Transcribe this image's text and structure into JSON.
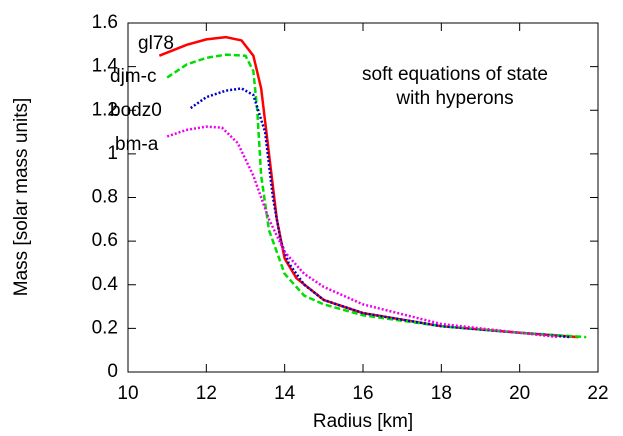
{
  "chart_data": {
    "type": "line",
    "xlabel": "Radius [km]",
    "ylabel": "Mass [solar mass units]",
    "annotation": [
      "soft equations of state",
      "with hyperons"
    ],
    "xlim": [
      10,
      22
    ],
    "xticks": [
      10,
      12,
      14,
      16,
      18,
      20,
      22
    ],
    "ylim": [
      0,
      1.6
    ],
    "yticks": [
      0,
      0.2,
      0.4,
      0.6,
      0.8,
      1,
      1.2,
      1.4,
      1.6
    ],
    "series": [
      {
        "name": "gl78",
        "color": "#ff0000",
        "dash": "solid",
        "x": [
          10.8,
          11.5,
          12,
          12.5,
          12.9,
          13.2,
          13.4,
          13.6,
          13.8,
          14,
          14.3,
          15,
          16,
          18,
          20,
          21.5
        ],
        "values": [
          1.45,
          1.5,
          1.525,
          1.535,
          1.52,
          1.45,
          1.3,
          1.0,
          0.7,
          0.52,
          0.43,
          0.33,
          0.27,
          0.21,
          0.18,
          0.16
        ]
      },
      {
        "name": "djm-c",
        "color": "#00dd00",
        "dash": "dashed",
        "x": [
          11,
          11.5,
          12,
          12.5,
          13,
          13.2,
          13.3,
          13.4,
          13.6,
          14,
          14.5,
          15,
          16,
          18,
          20,
          21.7
        ],
        "values": [
          1.35,
          1.41,
          1.44,
          1.455,
          1.45,
          1.38,
          1.2,
          0.9,
          0.65,
          0.45,
          0.35,
          0.31,
          0.26,
          0.21,
          0.18,
          0.16
        ]
      },
      {
        "name": "bodz0",
        "color": "#0000cc",
        "dash": "dotted",
        "x": [
          11.6,
          12,
          12.5,
          12.9,
          13.2,
          13.5,
          13.7,
          13.9,
          14.1,
          14.5,
          15,
          16,
          18,
          20,
          21.3
        ],
        "values": [
          1.21,
          1.26,
          1.29,
          1.3,
          1.27,
          1.1,
          0.8,
          0.6,
          0.5,
          0.4,
          0.33,
          0.27,
          0.21,
          0.18,
          0.16
        ]
      },
      {
        "name": "bm-a",
        "color": "#ee00ee",
        "dash": "dotted",
        "x": [
          11,
          11.5,
          12,
          12.4,
          12.8,
          13.2,
          13.6,
          14,
          14.5,
          15,
          16,
          18,
          20,
          21
        ],
        "values": [
          1.08,
          1.11,
          1.125,
          1.12,
          1.05,
          0.9,
          0.7,
          0.55,
          0.45,
          0.39,
          0.31,
          0.22,
          0.18,
          0.16
        ]
      }
    ]
  }
}
